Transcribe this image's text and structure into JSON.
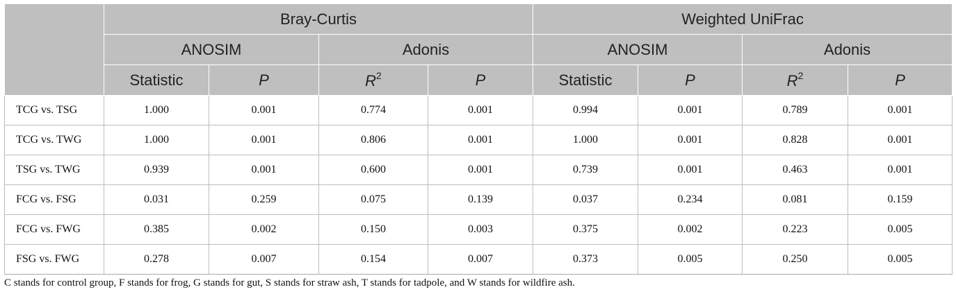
{
  "header": {
    "group1": "Bray-Curtis",
    "group2": "Weighted UniFrac",
    "anosim": "ANOSIM",
    "adonis": "Adonis",
    "statistic": "Statistic",
    "p": "P",
    "r": "R",
    "r_sup": "2"
  },
  "rows": [
    {
      "label": "TCG vs. TSG",
      "bc_stat": "1.000",
      "bc_p": "0.001",
      "bc_r2": "0.774",
      "bc_p2": "0.001",
      "wu_stat": "0.994",
      "wu_p": "0.001",
      "wu_r2": "0.789",
      "wu_p2": "0.001"
    },
    {
      "label": "TCG vs. TWG",
      "bc_stat": "1.000",
      "bc_p": "0.001",
      "bc_r2": "0.806",
      "bc_p2": "0.001",
      "wu_stat": "1.000",
      "wu_p": "0.001",
      "wu_r2": "0.828",
      "wu_p2": "0.001"
    },
    {
      "label": "TSG vs. TWG",
      "bc_stat": "0.939",
      "bc_p": "0.001",
      "bc_r2": "0.600",
      "bc_p2": "0.001",
      "wu_stat": "0.739",
      "wu_p": "0.001",
      "wu_r2": "0.463",
      "wu_p2": "0.001"
    },
    {
      "label": "FCG vs. FSG",
      "bc_stat": "0.031",
      "bc_p": "0.259",
      "bc_r2": "0.075",
      "bc_p2": "0.139",
      "wu_stat": "0.037",
      "wu_p": "0.234",
      "wu_r2": "0.081",
      "wu_p2": "0.159"
    },
    {
      "label": "FCG vs. FWG",
      "bc_stat": "0.385",
      "bc_p": "0.002",
      "bc_r2": "0.150",
      "bc_p2": "0.003",
      "wu_stat": "0.375",
      "wu_p": "0.002",
      "wu_r2": "0.223",
      "wu_p2": "0.005"
    },
    {
      "label": "FSG vs. FWG",
      "bc_stat": "0.278",
      "bc_p": "0.007",
      "bc_r2": "0.154",
      "bc_p2": "0.007",
      "wu_stat": "0.373",
      "wu_p": "0.005",
      "wu_r2": "0.250",
      "wu_p2": "0.005"
    }
  ],
  "footnote": "C stands for control group, F stands for frog, G stands for gut, S stands for straw ash, T stands for tadpole, and W stands for wildfire ash."
}
